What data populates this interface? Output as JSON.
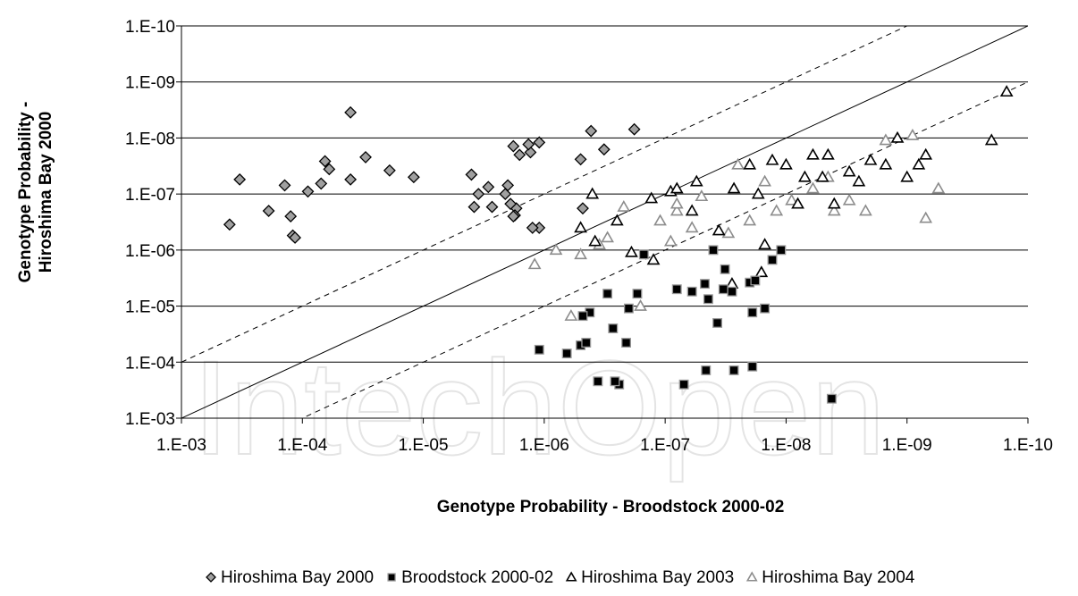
{
  "chart_data": {
    "type": "scatter",
    "title": "",
    "xlabel": "Genotype Probability - Broodstock 2000-02",
    "ylabel_line1": "Genotype Probability -",
    "ylabel_line2": "Hiroshima Bay 2000",
    "x_scale": "log-reversed",
    "y_scale": "log-reversed",
    "xlim": [
      0.001,
      1e-10
    ],
    "ylim": [
      0.001,
      1e-10
    ],
    "x_ticks": [
      "1.E-03",
      "1.E-04",
      "1.E-05",
      "1.E-06",
      "1.E-07",
      "1.E-08",
      "1.E-09",
      "1.E-10"
    ],
    "y_ticks": [
      "1.E-03",
      "1.E-04",
      "1.E-05",
      "1.E-06",
      "1.E-07",
      "1.E-08",
      "1.E-09",
      "1.E-10"
    ],
    "grid": "horizontal",
    "legend_position": "bottom",
    "reference_lines": [
      {
        "style": "solid",
        "relation": "y = x"
      },
      {
        "style": "dashed",
        "relation": "y = 10x"
      },
      {
        "style": "dashed",
        "relation": "y = x/10"
      }
    ],
    "series": [
      {
        "name": "Hiroshima Bay 2000",
        "marker": "diamond",
        "fill": "#a0a0a0",
        "stroke": "#000000",
        "x": [
          0.0004,
          0.00033,
          0.00014,
          0.00019,
          0.00012,
          0.000125,
          0.000115,
          6.5e-05,
          7e-05,
          9e-05,
          6e-05,
          4e-05,
          3e-05,
          1.9e-05,
          1.2e-05,
          4e-06,
          2e-06,
          1.7e-06,
          3.8e-06,
          2.1e-06,
          2.9e-06,
          1.8e-06,
          1.75e-06,
          1.3e-06,
          5e-07,
          3.5e-06,
          1.1e-06,
          1.9e-06,
          1.6e-06,
          1.35e-06,
          1.1e-06,
          4.1e-07,
          2.7e-06,
          1.25e-06,
          1.8e-07,
          3.2e-07,
          4.8e-07,
          1.8e-06,
          4e-05
        ],
        "y": [
          3.5e-07,
          5.5e-08,
          7e-08,
          2e-07,
          5.5e-07,
          2.5e-07,
          6e-07,
          2.6e-08,
          6.5e-08,
          9e-08,
          3.6e-08,
          3.5e-09,
          2.2e-08,
          3.8e-08,
          5e-08,
          4.5e-08,
          7e-08,
          1.8e-07,
          1.7e-07,
          1e-07,
          7.5e-08,
          1.4e-08,
          2.4e-07,
          1.8e-08,
          2.4e-08,
          1e-07,
          4e-07,
          1.5e-07,
          2e-08,
          1.3e-08,
          1.2e-08,
          7.5e-09,
          1.7e-07,
          4e-07,
          7e-09,
          1.6e-08,
          1.8e-07,
          2.5e-07,
          5.5e-08
        ]
      },
      {
        "name": "Broodstock 2000-02",
        "marker": "square",
        "fill": "#000000",
        "stroke": "#999999",
        "x": [
          1.1e-06,
          6.5e-07,
          5e-07,
          4.5e-07,
          3.6e-07,
          2.1e-07,
          1.5e-07,
          3e-07,
          1.7e-07,
          3.3e-08,
          4e-08,
          6e-08,
          2.4e-07,
          2.6e-07,
          4.2e-07,
          1.9e-08,
          8e-08,
          2.7e-07,
          7e-08,
          4.7e-08,
          2e-08,
          4.4e-08,
          1.1e-08,
          2.7e-08,
          4.2e-09,
          2e-07,
          4.8e-07,
          4.6e-08,
          1.8e-08,
          1.3e-08,
          3.2e-08,
          2.8e-08,
          1.5e-08,
          1.9e-08,
          3.7e-08
        ],
        "y": [
          6e-05,
          7e-05,
          5e-05,
          4.5e-05,
          0.00022,
          4.5e-05,
          1.2e-06,
          6e-06,
          6e-06,
          5e-06,
          1e-06,
          5.5e-06,
          0.00025,
          0.00022,
          1.3e-05,
          1.3e-05,
          5e-06,
          2.5e-05,
          0.00025,
          4e-06,
          3.8e-06,
          7.5e-06,
          1e-06,
          0.00014,
          0.00045,
          1.1e-05,
          1.5e-05,
          0.00014,
          3.5e-06,
          1.5e-06,
          2.2e-06,
          5.5e-06,
          1.1e-05,
          0.00012,
          2e-05
        ]
      },
      {
        "name": "Hiroshima Bay 2003",
        "marker": "triangle",
        "fill": "#ffffff",
        "stroke": "#000000",
        "x": [
          5e-07,
          4e-07,
          3.8e-07,
          2.5e-07,
          1.9e-07,
          1.3e-07,
          1.25e-07,
          9e-08,
          8e-08,
          6e-08,
          5.5e-08,
          3.6e-08,
          2.7e-08,
          2e-08,
          1.7e-08,
          1.3e-08,
          1e-08,
          8e-09,
          7e-09,
          6e-09,
          5e-09,
          4.5e-09,
          4e-09,
          3e-09,
          2.5e-09,
          2e-09,
          1.5e-09,
          1.2e-09,
          1e-09,
          8e-10,
          7e-10,
          1.5e-10,
          2e-10,
          1.6e-08,
          2.8e-08,
          1.5e-08
        ],
        "y": [
          4e-07,
          1e-07,
          7e-07,
          3e-07,
          1.1e-06,
          1.2e-07,
          1.5e-06,
          9e-08,
          8e-08,
          2e-07,
          6e-08,
          4.5e-07,
          8e-08,
          3e-08,
          1e-07,
          2.5e-08,
          3e-08,
          1.5e-07,
          5e-08,
          2e-08,
          5e-08,
          2e-08,
          1.5e-07,
          4e-08,
          6e-08,
          2.5e-08,
          3e-08,
          1e-08,
          5e-08,
          3e-08,
          2e-08,
          1.5e-09,
          1.1e-08,
          2.5e-06,
          4e-06,
          8e-07
        ]
      },
      {
        "name": "Hiroshima Bay 2004",
        "marker": "triangle",
        "fill": "#ffffff",
        "stroke": "#8c8c8c",
        "x": [
          1.2e-06,
          8e-07,
          6e-07,
          5e-07,
          3.5e-07,
          3e-07,
          2.2e-07,
          1.6e-07,
          1.1e-07,
          9e-08,
          8e-08,
          6e-08,
          5e-08,
          3e-08,
          2e-08,
          1.2e-08,
          9e-09,
          6e-09,
          4.5e-09,
          3e-09,
          2.2e-09,
          1.5e-09,
          9e-10,
          7e-10,
          5.5e-10,
          4e-09,
          1.5e-08,
          8e-08,
          2.5e-08
        ],
        "y": [
          1.8e-06,
          1e-06,
          1.5e-05,
          1.2e-06,
          8e-07,
          6e-07,
          1.7e-07,
          1e-05,
          3e-07,
          7e-07,
          2e-07,
          4e-07,
          1.1e-07,
          5e-07,
          3e-07,
          2e-07,
          1.3e-07,
          8e-08,
          5e-08,
          1.3e-07,
          2e-07,
          1.1e-08,
          9e-09,
          2.7e-07,
          8e-08,
          2e-07,
          6e-08,
          1.5e-07,
          3e-08
        ]
      }
    ]
  }
}
